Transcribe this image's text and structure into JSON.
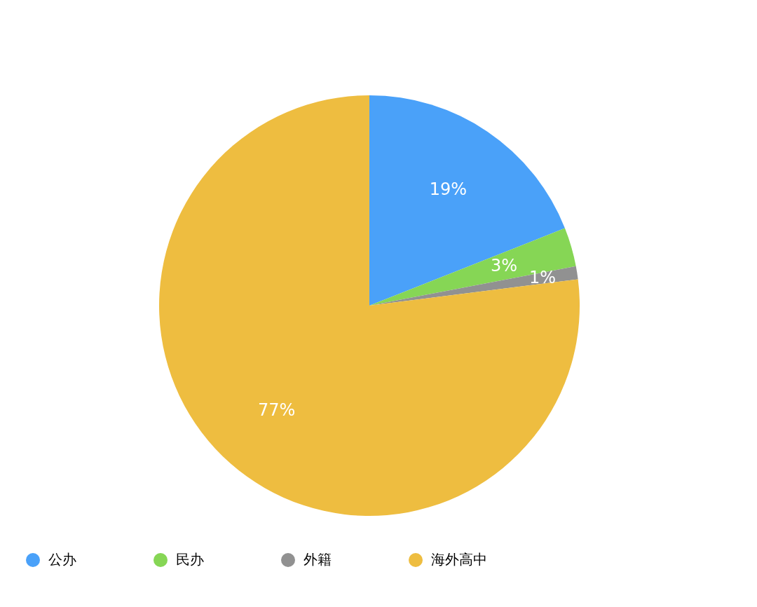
{
  "chart_data": {
    "type": "pie",
    "categories": [
      "公办",
      "民办",
      "外籍",
      "海外高中"
    ],
    "values": [
      19,
      3,
      1,
      77
    ],
    "colors": [
      "#4aa1f9",
      "#86d655",
      "#919191",
      "#eebd40"
    ],
    "value_labels": [
      "19%",
      "3%",
      "1%",
      "77%"
    ],
    "legend": "bottom"
  }
}
